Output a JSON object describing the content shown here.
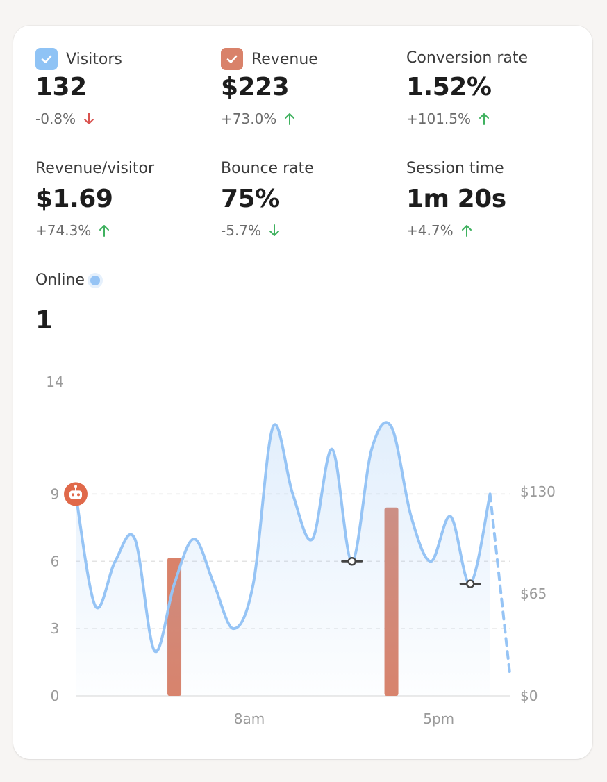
{
  "metrics": [
    {
      "label": "Visitors",
      "value": "132",
      "delta": "-0.8%",
      "direction": "down",
      "checkbox": true,
      "checkbox_color": "#8fc3f5"
    },
    {
      "label": "Revenue",
      "value": "$223",
      "delta": "+73.0%",
      "direction": "up",
      "checkbox": true,
      "checkbox_color": "#d9826a"
    },
    {
      "label": "Conversion rate",
      "value": "1.52%",
      "delta": "+101.5%",
      "direction": "up"
    },
    {
      "label": "Revenue/visitor",
      "value": "$1.69",
      "delta": "+74.3%",
      "direction": "up"
    },
    {
      "label": "Bounce rate",
      "value": "75%",
      "delta": "-5.7%",
      "direction": "down"
    },
    {
      "label": "Session time",
      "value": "1m 20s",
      "delta": "+4.7%",
      "direction": "up"
    }
  ],
  "online": {
    "label": "Online",
    "value": "1",
    "dot_color": "#96c4f5"
  },
  "colors": {
    "up": "#3fb15f",
    "down": "#d9534f",
    "visitors_line": "#96c4f5",
    "revenue_bar": "#d9826a"
  },
  "icons": {
    "bot_marker": "robot-icon",
    "checkbox": "checkmark-icon",
    "arrow_up": "arrow-up-icon",
    "arrow_down": "arrow-down-icon"
  },
  "chart_data": {
    "type": "line",
    "x_ticks": [
      "8am",
      "5pm"
    ],
    "y_ticks": [
      "0",
      "3",
      "6",
      "9",
      "14"
    ],
    "y_right_ticks": [
      "$0",
      "$65",
      "$130"
    ],
    "ylim": [
      0,
      14
    ],
    "y_right_lim": [
      0,
      200
    ],
    "grid": true,
    "series": [
      {
        "name": "Visitors",
        "hours": [
          0,
          1,
          2,
          3,
          4,
          5,
          6,
          7,
          8,
          9,
          10,
          11,
          12,
          13,
          14,
          15,
          16,
          17,
          18,
          19,
          20,
          21,
          22
        ],
        "values": [
          9,
          4,
          6,
          7,
          2,
          5,
          7,
          5,
          3,
          5,
          12,
          9,
          7,
          11,
          6,
          11,
          12,
          8,
          6,
          8,
          5,
          9,
          1
        ],
        "projected_from_hour": 21
      },
      {
        "name": "Revenue",
        "hours": [
          5,
          16
        ],
        "values": [
          88,
          120
        ]
      }
    ],
    "markers": [
      {
        "type": "bot",
        "hour": 0
      },
      {
        "type": "annotation",
        "hour": 14
      },
      {
        "type": "annotation",
        "hour": 20
      }
    ]
  }
}
